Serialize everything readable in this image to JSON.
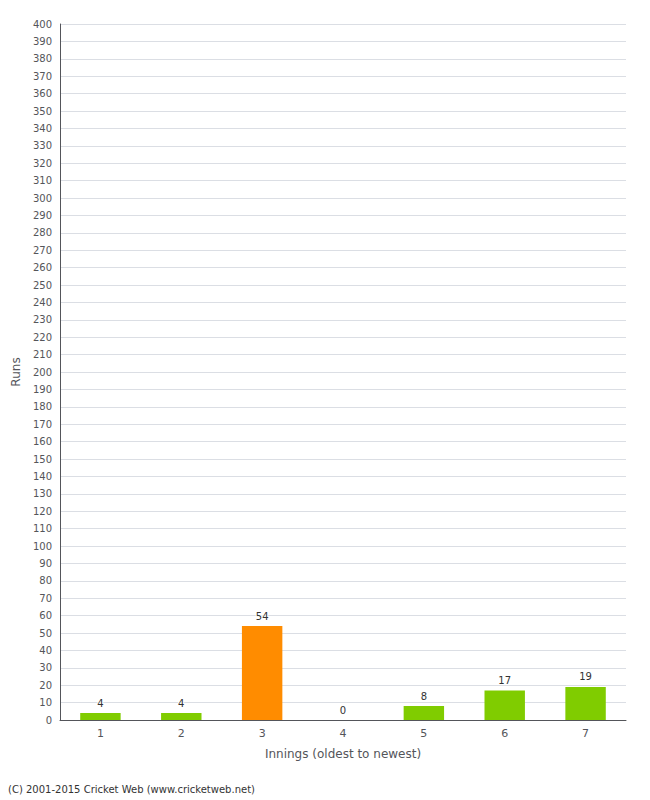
{
  "chart_data": {
    "type": "bar",
    "categories": [
      "1",
      "2",
      "3",
      "4",
      "5",
      "6",
      "7"
    ],
    "values": [
      4,
      4,
      54,
      0,
      8,
      17,
      19
    ],
    "colors": [
      "#80cc00",
      "#80cc00",
      "#ff8c00",
      "#80cc00",
      "#80cc00",
      "#80cc00",
      "#80cc00"
    ],
    "xlabel": "Innings (oldest to newest)",
    "ylabel": "Runs",
    "ylim": [
      0,
      400
    ],
    "yticks": [
      0,
      10,
      20,
      30,
      40,
      50,
      60,
      70,
      80,
      90,
      100,
      110,
      120,
      130,
      140,
      150,
      160,
      170,
      180,
      190,
      200,
      210,
      220,
      230,
      240,
      250,
      260,
      270,
      280,
      290,
      300,
      310,
      320,
      330,
      340,
      350,
      360,
      370,
      380,
      390,
      400
    ],
    "grid": true,
    "data_labels": true,
    "annotations": [
      "(C) 2001-2015 Cricket Web (www.cricketweb.net)"
    ]
  }
}
